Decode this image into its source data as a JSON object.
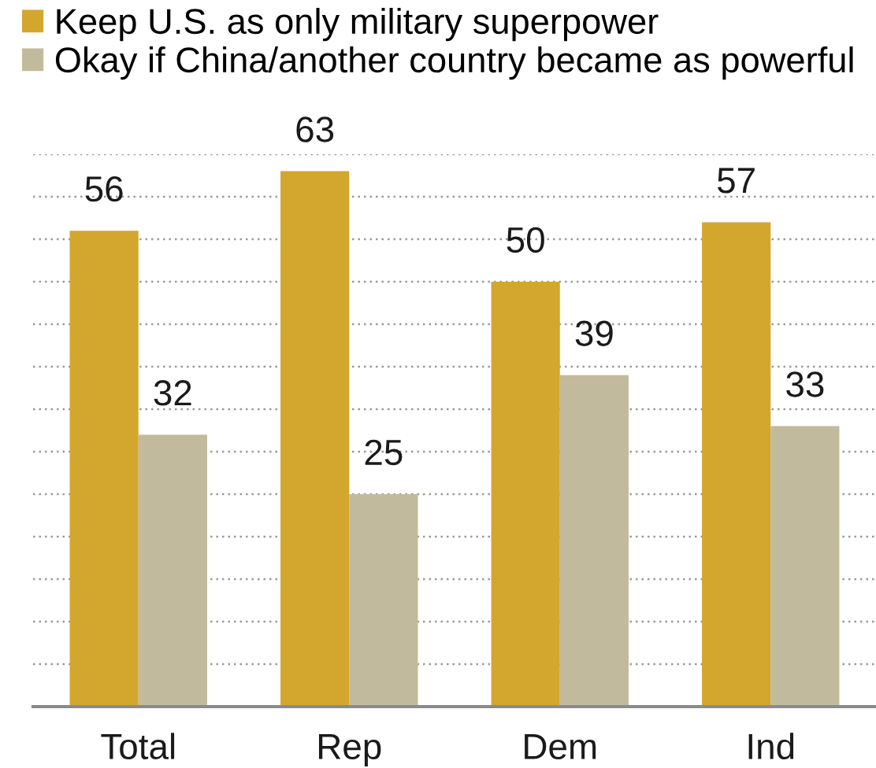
{
  "chart_data": {
    "type": "bar",
    "categories": [
      "Total",
      "Rep",
      "Dem",
      "Ind"
    ],
    "series": [
      {
        "name": "Keep U.S. as only military superpower",
        "color": "#d3a62e",
        "values": [
          56,
          63,
          50,
          57
        ]
      },
      {
        "name": "Okay if China/another country became as powerful",
        "color": "#c1ba9c",
        "values": [
          32,
          25,
          39,
          33
        ]
      }
    ],
    "ylim": [
      0,
      65
    ],
    "yticks": [
      {
        "value": 5,
        "label": null
      },
      {
        "value": 10,
        "label": null
      },
      {
        "value": 15,
        "label": null
      },
      {
        "value": 20,
        "label": null
      },
      {
        "value": 25,
        "label": null
      },
      {
        "value": 30,
        "label": null
      },
      {
        "value": 35,
        "label": null
      },
      {
        "value": 40,
        "label": null
      },
      {
        "value": 45,
        "label": null
      },
      {
        "value": 50,
        "label": null
      },
      {
        "value": 55,
        "label": null
      },
      {
        "value": 60,
        "label": null
      },
      {
        "value": 65,
        "label": null
      }
    ],
    "grid": "y",
    "legend": "top left",
    "data_labels": true,
    "tick_labels": "x"
  }
}
